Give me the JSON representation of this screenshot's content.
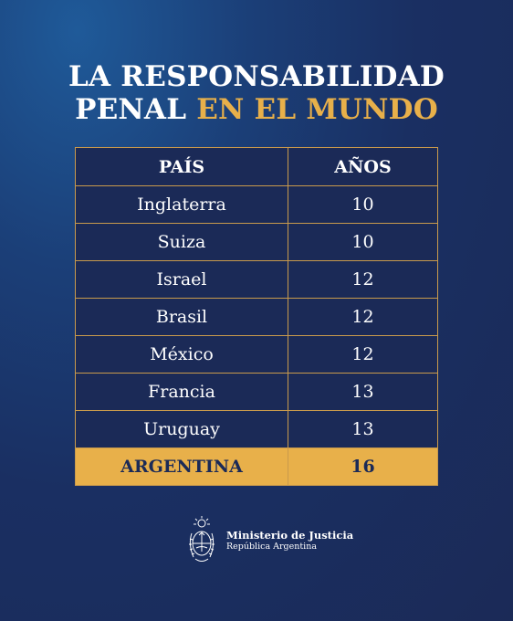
{
  "title": {
    "line1": "LA RESPONSABILIDAD",
    "line2_white": "PENAL",
    "line2_accent": "EN EL MUNDO"
  },
  "table": {
    "headers": [
      "PAÍS",
      "AÑOS"
    ],
    "rows": [
      {
        "pais": "Inglaterra",
        "anos": "10"
      },
      {
        "pais": "Suiza",
        "anos": "10"
      },
      {
        "pais": "Israel",
        "anos": "12"
      },
      {
        "pais": "Brasil",
        "anos": "12"
      },
      {
        "pais": "México",
        "anos": "12"
      },
      {
        "pais": "Francia",
        "anos": "13"
      },
      {
        "pais": "Uruguay",
        "anos": "13"
      }
    ],
    "highlight": {
      "pais": "ARGENTINA",
      "anos": "16"
    }
  },
  "footer": {
    "logo_icon": "argentina-coat-of-arms-icon",
    "line1": "Ministerio de Justicia",
    "line2": "República Argentina"
  },
  "colors": {
    "background": "#1b2a57",
    "accent": "#e8b04a",
    "border": "#c99a4c"
  }
}
